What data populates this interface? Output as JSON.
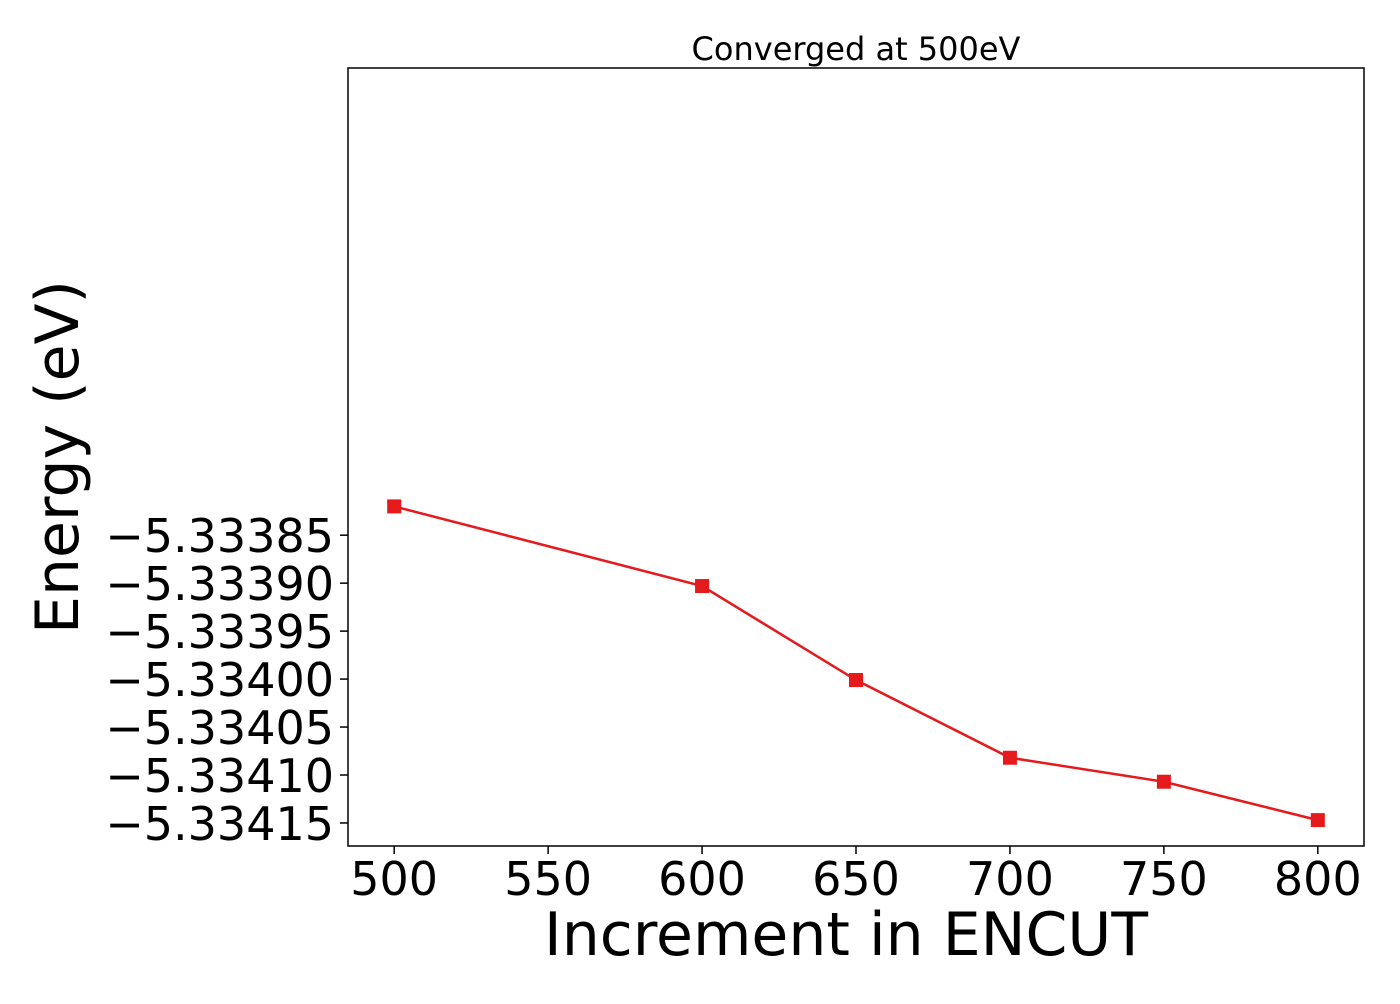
{
  "chart_data": {
    "type": "line",
    "title": "Converged at 500eV",
    "xlabel": "Increment in ENCUT",
    "ylabel": "Energy (eV)",
    "xlim": [
      485,
      815
    ],
    "ylim": [
      -5.333363,
      -5.334174
    ],
    "x_ticks": [
      500,
      550,
      600,
      650,
      700,
      750,
      800
    ],
    "x_tick_labels": [
      "500",
      "550",
      "600",
      "650",
      "700",
      "750",
      "800"
    ],
    "y_ticks": [
      -5.33385,
      -5.3339,
      -5.33395,
      -5.334,
      -5.33405,
      -5.3341,
      -5.33415
    ],
    "y_tick_labels": [
      "−5.33385",
      "−5.33390",
      "−5.33395",
      "−5.33400",
      "−5.33405",
      "−5.33410",
      "−5.33415"
    ],
    "grid": false,
    "series": [
      {
        "color": "#e41a1c",
        "marker": "square",
        "x": [
          500,
          600,
          650,
          700,
          750,
          800
        ],
        "y": [
          -5.33382,
          -5.333903,
          -5.334001,
          -5.334082,
          -5.334107,
          -5.334147
        ]
      }
    ]
  }
}
